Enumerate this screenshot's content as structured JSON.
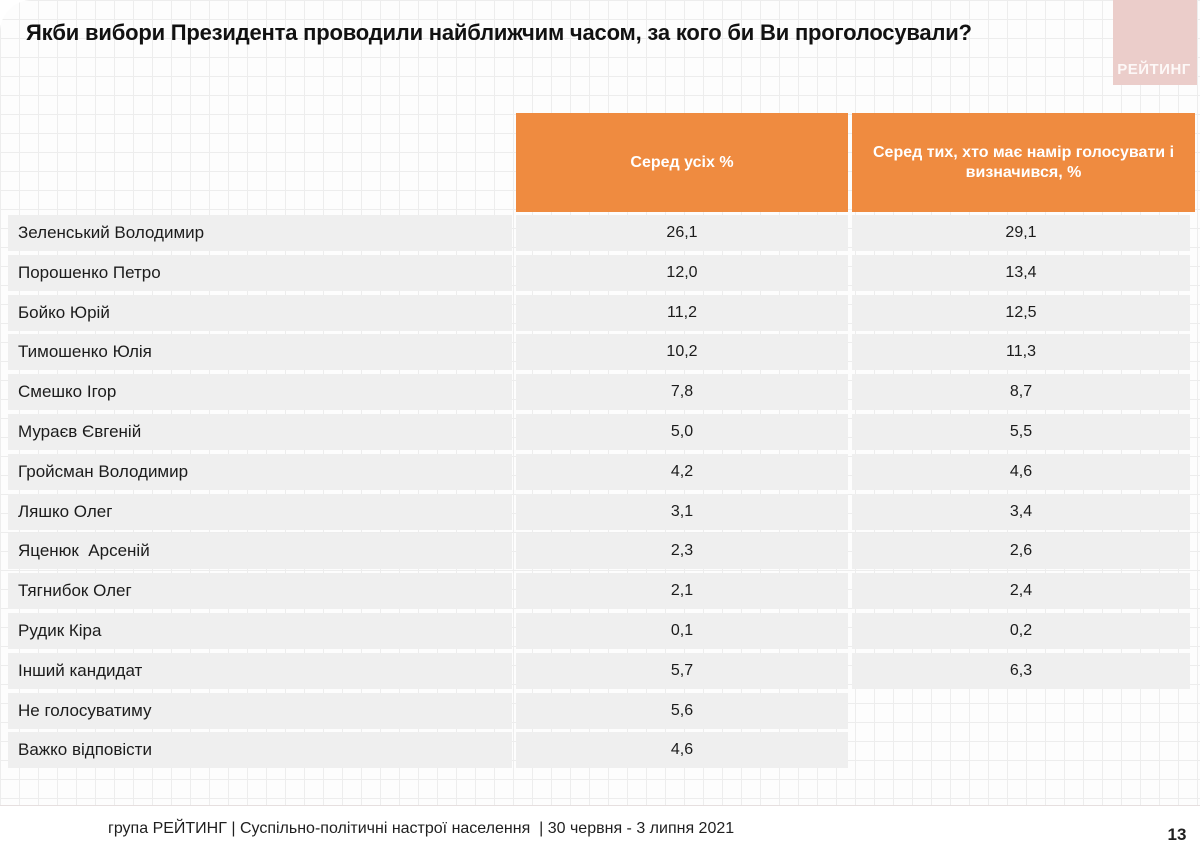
{
  "title": "Якби вибори Президента проводили найближчим часом, за кого би Ви проголосували?",
  "logo": {
    "text": "РЕЙТИНГ",
    "bg_color": "#ebcdca",
    "text_color": "#ffffff"
  },
  "table": {
    "header_color": "#ef8b40",
    "row_color": "#efefef",
    "columns": [
      {
        "label": "Серед усіх %"
      },
      {
        "label": "Серед тих, хто має намір голосувати і визначився, %"
      }
    ],
    "rows": [
      {
        "name": "Зеленський Володимир",
        "all": "26,1",
        "decided": "29,1"
      },
      {
        "name": "Порошенко Петро",
        "all": "12,0",
        "decided": "13,4"
      },
      {
        "name": "Бойко Юрій",
        "all": "11,2",
        "decided": "12,5"
      },
      {
        "name": "Тимошенко Юлія",
        "all": "10,2",
        "decided": "11,3"
      },
      {
        "name": "Смешко Ігор",
        "all": "7,8",
        "decided": "8,7"
      },
      {
        "name": "Мураєв Євгеній",
        "all": "5,0",
        "decided": "5,5"
      },
      {
        "name": "Гройсман Володимир",
        "all": "4,2",
        "decided": "4,6"
      },
      {
        "name": "Ляшко Олег",
        "all": "3,1",
        "decided": "3,4"
      },
      {
        "name": "Яценюк  Арсеній",
        "all": "2,3",
        "decided": "2,6"
      },
      {
        "name": "Тягнибок Олег",
        "all": "2,1",
        "decided": "2,4"
      },
      {
        "name": "Рудик Кіра",
        "all": "0,1",
        "decided": "0,2"
      },
      {
        "name": "Інший кандидат",
        "all": "5,7",
        "decided": "6,3"
      },
      {
        "name": "Не голосуватиму",
        "all": "5,6",
        "decided": null
      },
      {
        "name": "Важко відповісти",
        "all": "4,6",
        "decided": null
      }
    ]
  },
  "footer": {
    "text": "група РЕЙТИНГ | Суспільно-політичні настрої населення  | 30 червня - 3 липня 2021",
    "page_number": "13"
  },
  "chart_data": {
    "type": "table",
    "title": "Якби вибори Президента проводили найближчим часом, за кого би Ви проголосували?",
    "categories": [
      "Зеленський Володимир",
      "Порошенко Петро",
      "Бойко Юрій",
      "Тимошенко Юлія",
      "Смешко Ігор",
      "Мураєв Євгеній",
      "Гройсман Володимир",
      "Ляшко Олег",
      "Яценюк Арсеній",
      "Тягнибок Олег",
      "Рудик Кіра",
      "Інший кандидат",
      "Не голосуватиму",
      "Важко відповісти"
    ],
    "series": [
      {
        "name": "Серед усіх %",
        "values": [
          26.1,
          12.0,
          11.2,
          10.2,
          7.8,
          5.0,
          4.2,
          3.1,
          2.3,
          2.1,
          0.1,
          5.7,
          5.6,
          4.6
        ]
      },
      {
        "name": "Серед тих, хто має намір голосувати і визначився, %",
        "values": [
          29.1,
          13.4,
          12.5,
          11.3,
          8.7,
          5.5,
          4.6,
          3.4,
          2.6,
          2.4,
          0.2,
          6.3,
          null,
          null
        ]
      }
    ]
  }
}
